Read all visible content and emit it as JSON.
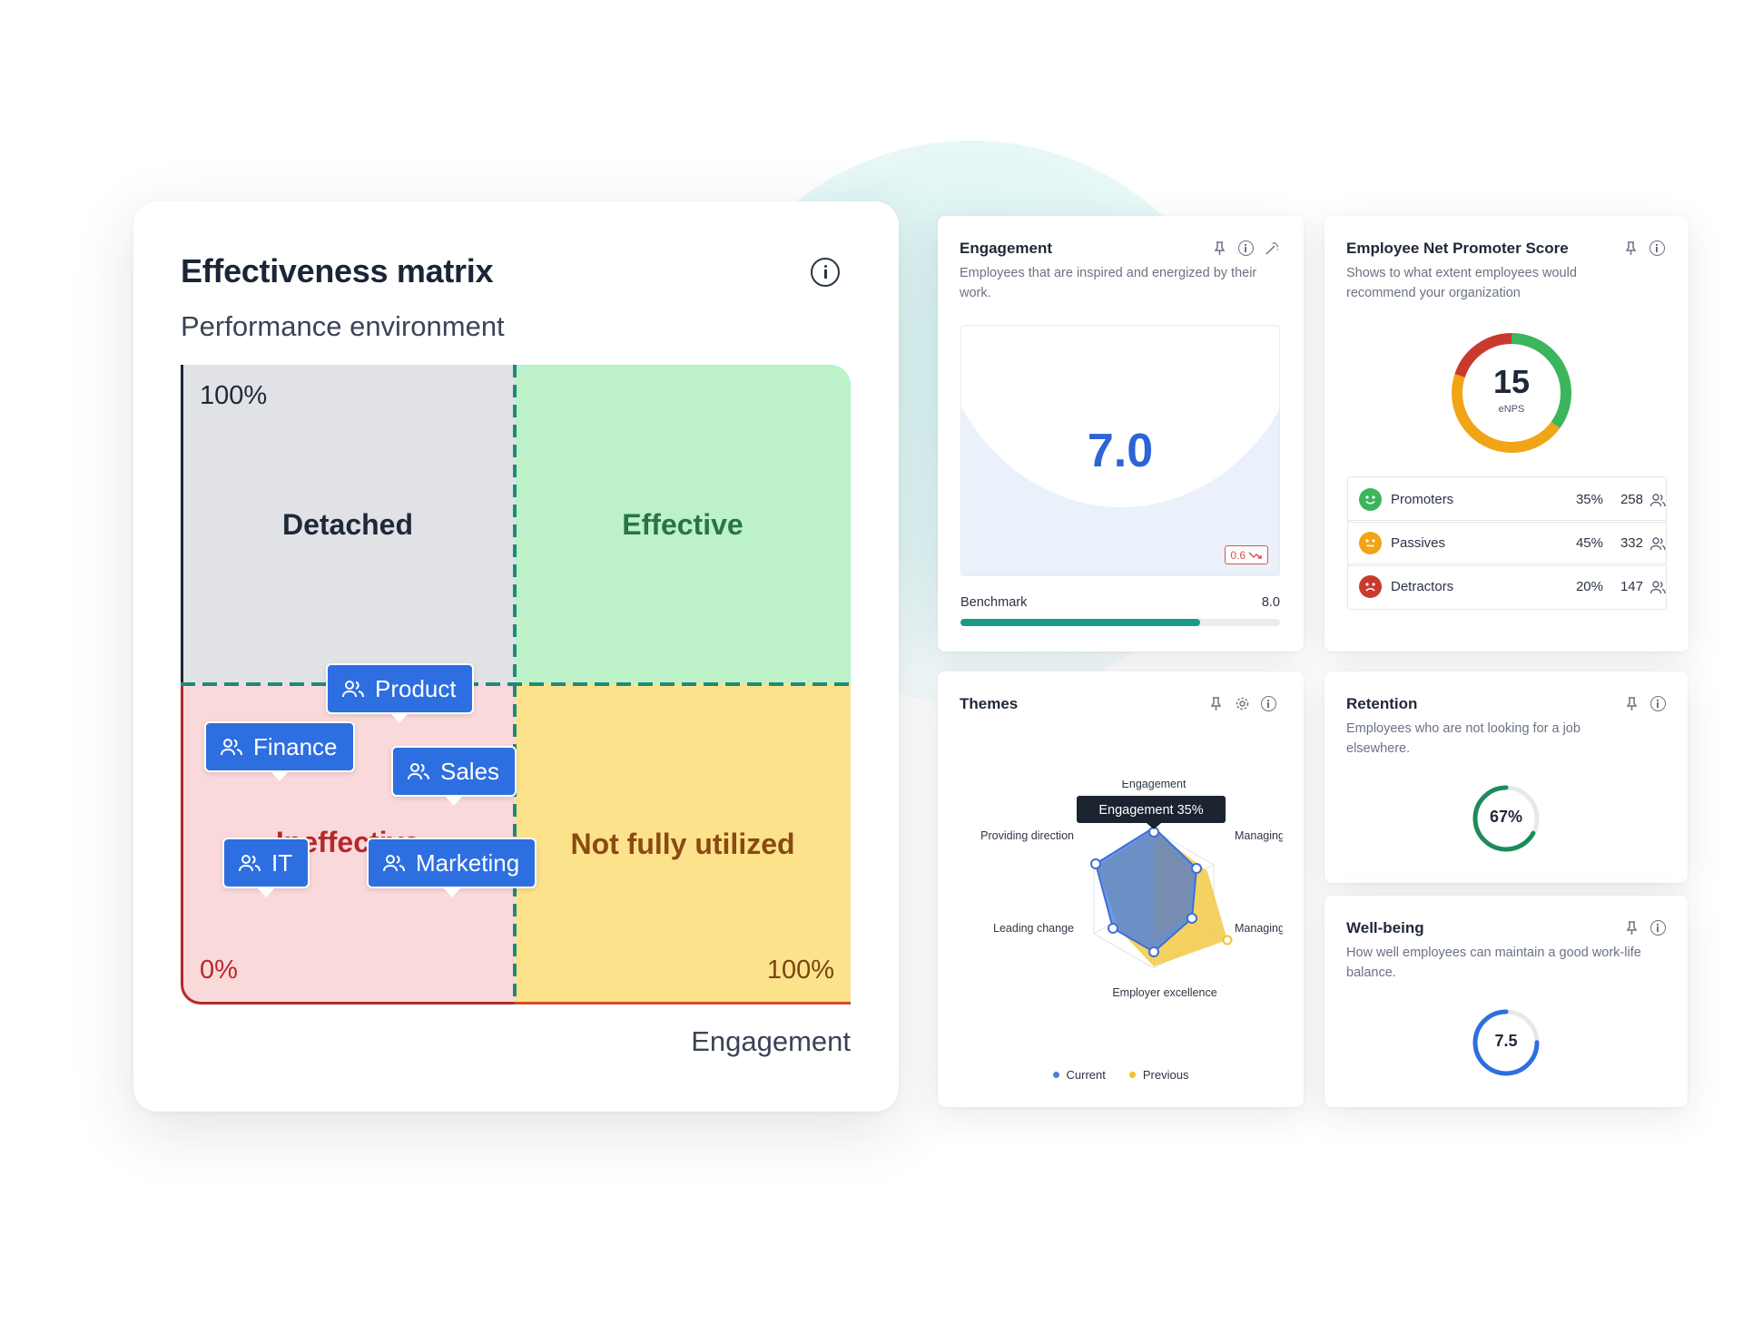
{
  "matrix": {
    "title": "Effectiveness matrix",
    "y_axis_label": "Performance environment",
    "x_axis_label": "Engagement",
    "pct_top": "100%",
    "pct_origin": "0%",
    "pct_right": "100%",
    "quadrants": {
      "top_left": "Detached",
      "top_right": "Effective",
      "bottom_left": "Ineffective",
      "bottom_right": "Not fully utilized"
    },
    "teams": [
      {
        "label": "Product"
      },
      {
        "label": "Finance"
      },
      {
        "label": "Sales"
      },
      {
        "label": "IT"
      },
      {
        "label": "Marketing"
      }
    ]
  },
  "engagement": {
    "title": "Engagement",
    "description": "Employees that are inspired and energized by their work.",
    "score": "7.0",
    "delta": "0.6",
    "benchmark_label": "Benchmark",
    "benchmark_value": "8.0",
    "benchmark_progress": 0.75,
    "icons": [
      "pin-icon",
      "info-icon",
      "magic-wand-icon"
    ]
  },
  "enps": {
    "title": "Employee Net Promoter Score",
    "description": "Shows to what extent employees would recommend your organization",
    "score": "15",
    "score_label": "eNPS",
    "rows": [
      {
        "label": "Promoters",
        "pct": "35%",
        "count": "258",
        "color": "#3cb55c"
      },
      {
        "label": "Passives",
        "pct": "45%",
        "count": "332",
        "color": "#f2a417"
      },
      {
        "label": "Detractors",
        "pct": "20%",
        "count": "147",
        "color": "#c93a2e"
      }
    ],
    "icons": [
      "pin-icon",
      "info-icon"
    ]
  },
  "themes": {
    "title": "Themes",
    "tooltip": "Engagement 35%",
    "axes": [
      "Engagement",
      "Managing people",
      "Managing systems",
      "Employer excellence",
      "Leading change",
      "Providing direction"
    ],
    "legend_current": "Current",
    "legend_previous": "Previous",
    "colors": {
      "current": "#4a7fe0",
      "previous": "#f2c12e"
    },
    "icons": [
      "pin-icon",
      "gear-icon",
      "info-icon"
    ]
  },
  "retention": {
    "title": "Retention",
    "description": "Employees who are not looking for a job elsewhere.",
    "value": "67%",
    "progress": 0.67,
    "icons": [
      "pin-icon",
      "info-icon"
    ]
  },
  "wellbeing": {
    "title": "Well-being",
    "description": "How well employees can maintain a good work-life balance.",
    "value": "7.5",
    "progress": 0.75,
    "icons": [
      "pin-icon",
      "info-icon"
    ]
  }
}
